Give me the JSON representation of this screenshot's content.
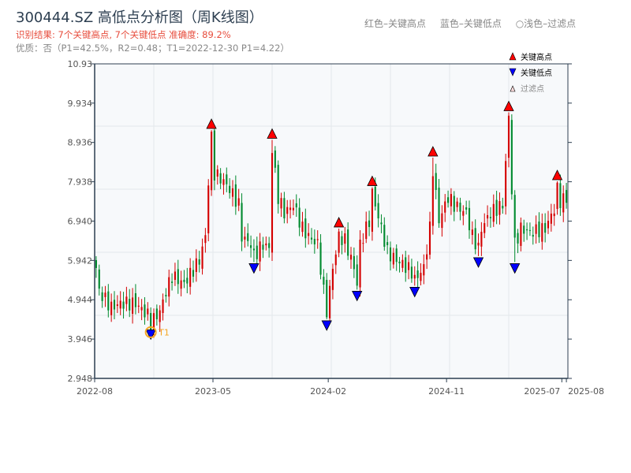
{
  "title": "300444.SZ 高低点分析图（周K线图）",
  "result_text": "识别结果: 7个关键高点, 7个关键低点   准确度: 89.2%",
  "quality_text": "优质：否（P1=42.5%，R2=0.48；T1=2022-12-30 P1=4.22）",
  "top_legend": [
    "红色–关键高点",
    "蓝色–关键低点",
    "○浅色–过滤点"
  ],
  "legend": {
    "high": "关键高点",
    "low": "关键低点",
    "filtered": "过滤点"
  },
  "colors": {
    "up": "#d40000",
    "down": "#008a2e",
    "high": "#ff0000",
    "low": "#0000ff",
    "t1": "#f5a623"
  },
  "chart_data": {
    "type": "candlestick",
    "ylim": [
      2.948,
      10.93
    ],
    "yticks": [
      "2.948",
      "3.946",
      "4.944",
      "5.942",
      "6.940",
      "7.938",
      "8.936",
      "9.934",
      "10.93"
    ],
    "weeks": 156,
    "xticks": [
      {
        "week": 0,
        "label": "2022-08"
      },
      {
        "week": 39,
        "label": "2023-05"
      },
      {
        "week": 77,
        "label": "2024-02"
      },
      {
        "week": 116,
        "label": "2024-11"
      },
      {
        "week": 154,
        "label": "2025-07"
      },
      {
        "week": 155.5,
        "label": "2025-08"
      }
    ],
    "close_path": [
      [
        0,
        5.75
      ],
      [
        1,
        5.15
      ],
      [
        5,
        4.75
      ],
      [
        8,
        4.85
      ],
      [
        13,
        4.85
      ],
      [
        17,
        4.55
      ],
      [
        18,
        4.35
      ],
      [
        21,
        4.65
      ],
      [
        23,
        5.15
      ],
      [
        25,
        5.55
      ],
      [
        29,
        5.35
      ],
      [
        34,
        5.95
      ],
      [
        36,
        6.55
      ],
      [
        37,
        7.95
      ],
      [
        38,
        9.05
      ],
      [
        39,
        8.15
      ],
      [
        42,
        7.95
      ],
      [
        44,
        7.75
      ],
      [
        47,
        7.35
      ],
      [
        48,
        6.55
      ],
      [
        51,
        6.35
      ],
      [
        52,
        6.05
      ],
      [
        55,
        6.35
      ],
      [
        57,
        6.25
      ],
      [
        58,
        8.75
      ],
      [
        60,
        7.55
      ],
      [
        62,
        7.15
      ],
      [
        65,
        7.35
      ],
      [
        68,
        6.75
      ],
      [
        70,
        6.55
      ],
      [
        73,
        6.35
      ],
      [
        75,
        5.15
      ],
      [
        76,
        4.65
      ],
      [
        78,
        5.75
      ],
      [
        80,
        6.55
      ],
      [
        82,
        6.45
      ],
      [
        85,
        5.75
      ],
      [
        86,
        5.35
      ],
      [
        87,
        6.35
      ],
      [
        90,
        6.95
      ],
      [
        91,
        7.65
      ],
      [
        94,
        6.75
      ],
      [
        96,
        6.15
      ],
      [
        99,
        5.95
      ],
      [
        101,
        5.85
      ],
      [
        104,
        5.65
      ],
      [
        105,
        5.45
      ],
      [
        108,
        5.75
      ],
      [
        110,
        6.75
      ],
      [
        111,
        8.25
      ],
      [
        113,
        6.95
      ],
      [
        116,
        7.55
      ],
      [
        118,
        7.35
      ],
      [
        122,
        7.15
      ],
      [
        124,
        6.55
      ],
      [
        126,
        6.25
      ],
      [
        127,
        6.75
      ],
      [
        130,
        7.15
      ],
      [
        134,
        7.35
      ],
      [
        136,
        9.55
      ],
      [
        137,
        7.75
      ],
      [
        138,
        6.35
      ],
      [
        140,
        6.75
      ],
      [
        143,
        6.65
      ],
      [
        148,
        6.75
      ],
      [
        151,
        7.25
      ],
      [
        152,
        7.75
      ],
      [
        153,
        7.45
      ],
      [
        156,
        7.55
      ]
    ],
    "key_highs": [
      [
        38,
        9.25
      ],
      [
        58,
        9.0
      ],
      [
        80,
        6.75
      ],
      [
        91,
        7.8
      ],
      [
        111,
        8.55
      ],
      [
        136,
        9.7
      ],
      [
        152,
        7.95
      ]
    ],
    "key_lows": [
      [
        18,
        4.22
      ],
      [
        52,
        5.9
      ],
      [
        76,
        4.45
      ],
      [
        86,
        5.2
      ],
      [
        105,
        5.3
      ],
      [
        126,
        6.05
      ],
      [
        138,
        5.9
      ]
    ],
    "t1": {
      "week": 18,
      "price": 4.22,
      "label": "T1"
    }
  }
}
